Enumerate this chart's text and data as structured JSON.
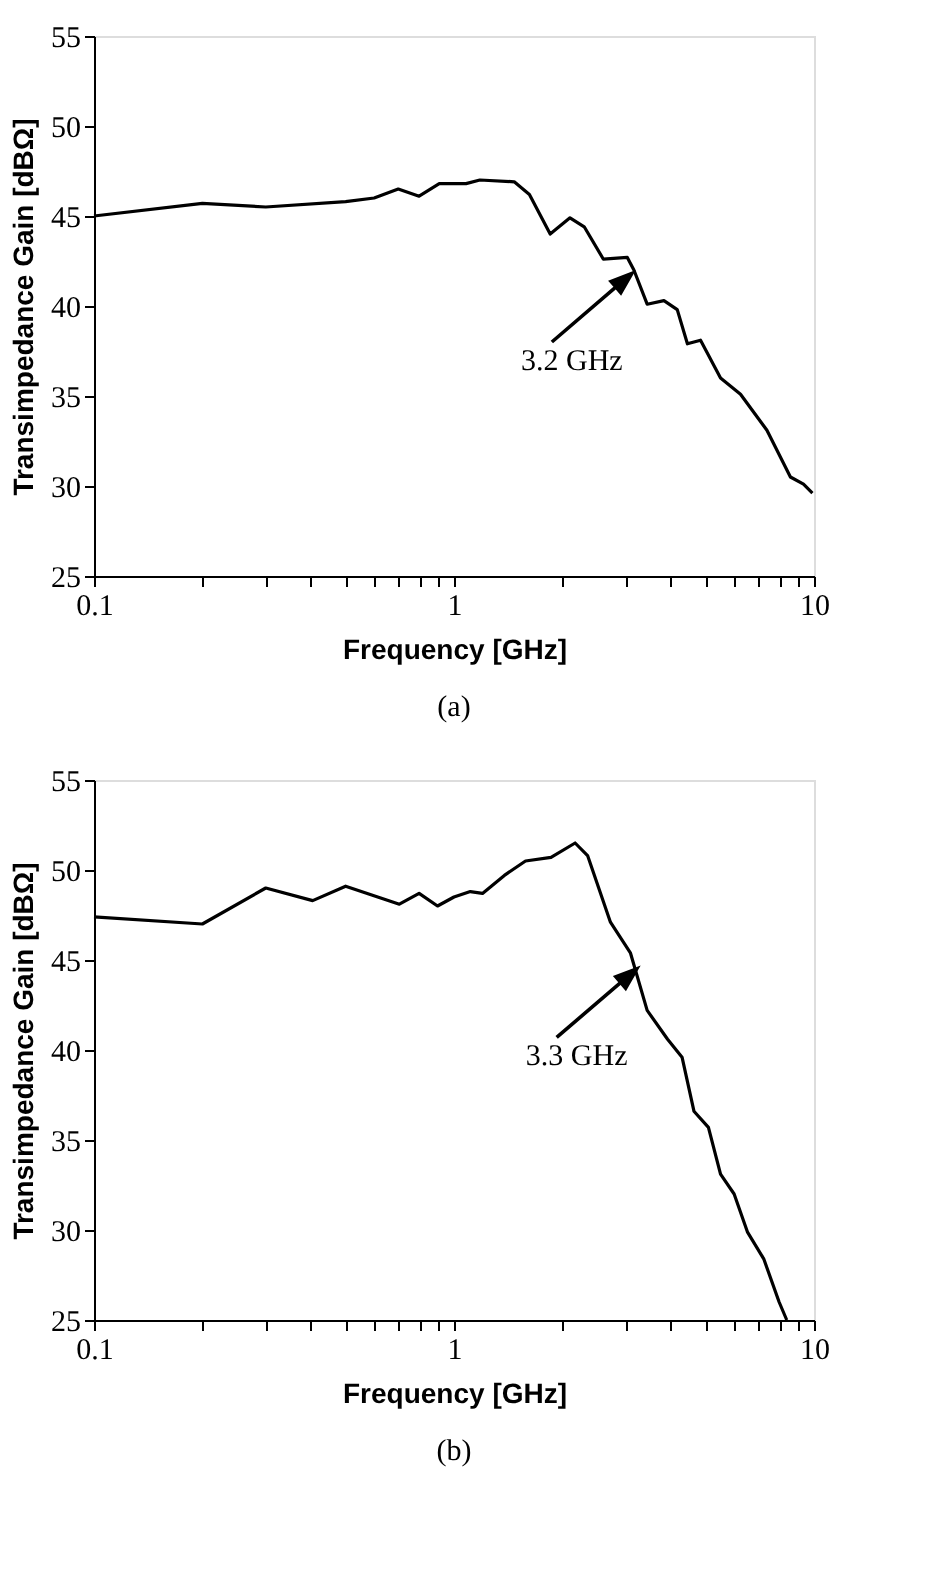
{
  "chart_data": [
    {
      "type": "line",
      "xlabel": "Frequency [GHz]",
      "ylabel": "Transimpedance Gain [dBΩ]",
      "log": "x",
      "grid": false,
      "xlim": [
        0.1,
        10
      ],
      "xticks": [
        0.1,
        {
          "value": 0.2,
          "label": null
        },
        {
          "value": 0.3,
          "label": null
        },
        {
          "value": 0.4,
          "label": null
        },
        {
          "value": 0.5,
          "label": null
        },
        {
          "value": 0.6,
          "label": null
        },
        {
          "value": 0.7,
          "label": null
        },
        {
          "value": 0.8,
          "label": null
        },
        {
          "value": 0.9,
          "label": null
        },
        1,
        {
          "value": 2,
          "label": null
        },
        {
          "value": 3,
          "label": null
        },
        {
          "value": 4,
          "label": null
        },
        {
          "value": 5,
          "label": null
        },
        {
          "value": 6,
          "label": null
        },
        {
          "value": 7,
          "label": null
        },
        {
          "value": 8,
          "label": null
        },
        {
          "value": 9,
          "label": null
        },
        10
      ],
      "ylim": [
        25,
        55
      ],
      "yticks": [
        25,
        30,
        35,
        40,
        45,
        50,
        55
      ],
      "series": [
        {
          "color": "#000000",
          "x": [
            0.1,
            0.2,
            0.3,
            0.5,
            0.6,
            0.7,
            0.8,
            0.91,
            1.08,
            1.18,
            1.47,
            1.62,
            1.85,
            2.1,
            2.3,
            2.6,
            3.03,
            3.16,
            3.44,
            3.83,
            4.17,
            4.45,
            4.84,
            5.5,
            6.25,
            7.4,
            8.6,
            9.35,
            9.9
          ],
          "values": [
            45.0,
            45.7,
            45.5,
            45.8,
            46.0,
            46.5,
            46.1,
            46.8,
            46.8,
            47.0,
            46.9,
            46.2,
            44.0,
            44.9,
            44.4,
            42.6,
            42.7,
            42.0,
            40.1,
            40.3,
            39.8,
            37.9,
            38.1,
            36.0,
            35.1,
            33.1,
            30.5,
            30.1,
            29.6
          ]
        }
      ],
      "annotations": [
        {
          "text": "3.2 GHz",
          "x": 3.2,
          "y": 42.0
        },
        "(a)"
      ]
    },
    {
      "type": "line",
      "xlabel": "Frequency [GHz]",
      "ylabel": "Transimpedance Gain [dBΩ]",
      "log": "x",
      "grid": false,
      "xlim": [
        0.1,
        10
      ],
      "xticks": [
        0.1,
        {
          "value": 0.2,
          "label": null
        },
        {
          "value": 0.3,
          "label": null
        },
        {
          "value": 0.4,
          "label": null
        },
        {
          "value": 0.5,
          "label": null
        },
        {
          "value": 0.6,
          "label": null
        },
        {
          "value": 0.7,
          "label": null
        },
        {
          "value": 0.8,
          "label": null
        },
        {
          "value": 0.9,
          "label": null
        },
        1,
        {
          "value": 2,
          "label": null
        },
        {
          "value": 3,
          "label": null
        },
        {
          "value": 4,
          "label": null
        },
        {
          "value": 5,
          "label": null
        },
        {
          "value": 6,
          "label": null
        },
        {
          "value": 7,
          "label": null
        },
        {
          "value": 8,
          "label": null
        },
        {
          "value": 9,
          "label": null
        },
        10
      ],
      "ylim": [
        25,
        55
      ],
      "yticks": [
        25,
        30,
        35,
        40,
        45,
        50,
        55
      ],
      "series": [
        {
          "color": "#000000",
          "x": [
            0.1,
            0.2,
            0.3,
            0.405,
            0.5,
            0.705,
            0.8,
            0.9,
            1.0,
            1.11,
            1.2,
            1.38,
            1.58,
            1.86,
            2.17,
            2.35,
            2.72,
            3.09,
            3.44,
            3.92,
            4.3,
            4.64,
            5.09,
            5.5,
            6.0,
            6.53,
            7.25,
            8.0,
            8.4
          ],
          "values": [
            47.4,
            47.0,
            49.0,
            48.3,
            49.1,
            48.1,
            48.7,
            48.0,
            48.5,
            48.8,
            48.7,
            49.7,
            50.5,
            50.7,
            51.5,
            50.8,
            47.1,
            45.4,
            42.2,
            40.6,
            39.6,
            36.6,
            35.7,
            33.1,
            32.0,
            29.9,
            28.4,
            26.0,
            25.0
          ]
        }
      ],
      "annotations": [
        {
          "text": "3.3 GHz",
          "x": 3.3,
          "y": 44.7
        },
        "(b)"
      ]
    }
  ]
}
